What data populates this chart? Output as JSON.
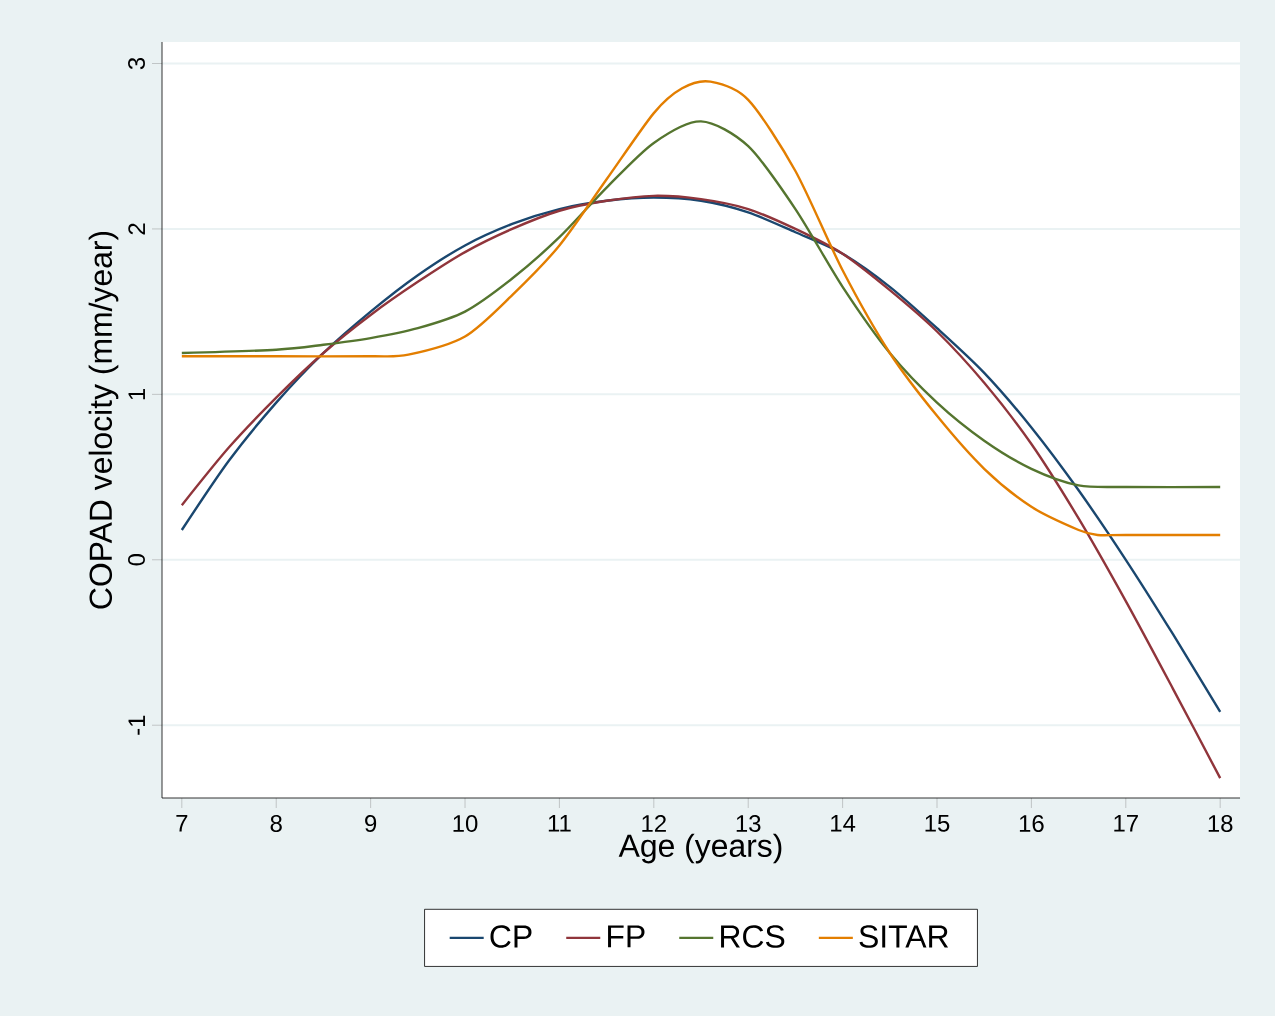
{
  "chart_data": {
    "type": "line",
    "xlabel": "Age (years)",
    "ylabel": "COPAD velocity (mm/year)",
    "xlim": [
      6.79,
      18.21
    ],
    "ylim": [
      -1.44,
      3.13
    ],
    "xticks": [
      7,
      8,
      9,
      10,
      11,
      12,
      13,
      14,
      15,
      16,
      17,
      18
    ],
    "yticks": [
      -1,
      0,
      1,
      2,
      3
    ],
    "grid": "y",
    "legend": "bottom",
    "marker": "none",
    "line_style": "solid",
    "series": [
      {
        "name": "CP",
        "color": "#1a476f",
        "x": [
          7,
          7.5,
          8,
          8.5,
          9,
          9.5,
          10,
          10.5,
          11,
          11.5,
          12,
          12.5,
          13,
          13.5,
          14,
          14.5,
          15,
          15.5,
          16,
          16.5,
          17,
          17.5,
          18
        ],
        "values": [
          0.18,
          0.6,
          0.95,
          1.25,
          1.5,
          1.72,
          1.9,
          2.03,
          2.12,
          2.17,
          2.19,
          2.17,
          2.1,
          1.98,
          1.85,
          1.65,
          1.4,
          1.13,
          0.8,
          0.42,
          0.0,
          -0.45,
          -0.92
        ]
      },
      {
        "name": "FP",
        "color": "#90353b",
        "x": [
          7,
          7.5,
          8,
          8.5,
          9,
          9.5,
          10,
          10.5,
          11,
          11.5,
          12,
          12.5,
          13,
          13.5,
          14,
          14.5,
          15,
          15.5,
          16,
          16.5,
          17,
          17.5,
          18
        ],
        "values": [
          0.33,
          0.68,
          0.98,
          1.25,
          1.48,
          1.68,
          1.86,
          2.0,
          2.11,
          2.17,
          2.2,
          2.18,
          2.12,
          2.0,
          1.85,
          1.63,
          1.38,
          1.07,
          0.7,
          0.25,
          -0.25,
          -0.78,
          -1.32
        ]
      },
      {
        "name": "RCS",
        "color": "#55752f",
        "x": [
          7,
          8,
          8.5,
          9,
          9.5,
          10,
          10.5,
          11,
          11.5,
          12,
          12.5,
          13,
          13.5,
          14,
          14.5,
          15,
          15.5,
          16,
          16.5,
          17,
          18
        ],
        "values": [
          1.25,
          1.27,
          1.3,
          1.34,
          1.4,
          1.5,
          1.7,
          1.95,
          2.25,
          2.52,
          2.65,
          2.5,
          2.12,
          1.65,
          1.25,
          0.95,
          0.72,
          0.55,
          0.45,
          0.44,
          0.44
        ]
      },
      {
        "name": "SITAR",
        "color": "#e37e00",
        "x": [
          7,
          8,
          9,
          9.4,
          10,
          10.5,
          11,
          11.5,
          12,
          12.3,
          12.6,
          13,
          13.5,
          14,
          14.5,
          15,
          15.5,
          16,
          16.5,
          16.7,
          17,
          18
        ],
        "values": [
          1.23,
          1.23,
          1.23,
          1.24,
          1.35,
          1.6,
          1.9,
          2.3,
          2.7,
          2.85,
          2.89,
          2.78,
          2.35,
          1.75,
          1.25,
          0.87,
          0.55,
          0.32,
          0.18,
          0.15,
          0.15,
          0.15
        ]
      }
    ]
  }
}
